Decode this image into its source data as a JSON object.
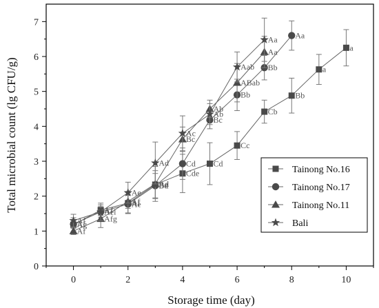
{
  "chart_data": {
    "type": "line",
    "xlabel": "Storage time (day)",
    "ylabel": "Total microbial count (lg CFU/g)",
    "xlim": [
      -1,
      11
    ],
    "ylim": [
      0,
      7.5
    ],
    "x_ticks": [
      0,
      2,
      4,
      6,
      8,
      10
    ],
    "y_ticks": [
      0,
      1,
      2,
      3,
      4,
      5,
      6,
      7
    ],
    "legend_position": "bottom-right",
    "line_color": "#666666",
    "series": [
      {
        "name": "Tainong No.16",
        "marker": "square",
        "points": [
          {
            "x": 0,
            "y": 1.18,
            "err": 0.2,
            "label": "Ag"
          },
          {
            "x": 1,
            "y": 1.6,
            "err": 0.15,
            "label": "Af"
          },
          {
            "x": 2,
            "y": 1.8,
            "err": 0.3,
            "label": "Af"
          },
          {
            "x": 3,
            "y": 2.33,
            "err": 0.4,
            "label": "Be"
          },
          {
            "x": 4,
            "y": 2.65,
            "err": 0.55,
            "label": "Cde"
          },
          {
            "x": 5,
            "y": 2.93,
            "err": 0.6,
            "label": "Cd"
          },
          {
            "x": 6,
            "y": 3.45,
            "err": 0.4,
            "label": "Cc"
          },
          {
            "x": 7,
            "y": 4.42,
            "err": 0.33,
            "label": "Cb"
          },
          {
            "x": 8,
            "y": 4.88,
            "err": 0.5,
            "label": "Bb"
          },
          {
            "x": 9,
            "y": 5.63,
            "err": 0.43,
            "label": "a"
          },
          {
            "x": 10,
            "y": 6.25,
            "err": 0.52,
            "label": "a"
          }
        ]
      },
      {
        "name": "Tainong No.17",
        "marker": "circle",
        "points": [
          {
            "x": 0,
            "y": 1.2,
            "err": 0.12,
            "label": "Af"
          },
          {
            "x": 1,
            "y": 1.55,
            "err": 0.15,
            "label": "Af"
          },
          {
            "x": 2,
            "y": 1.77,
            "err": 0.25,
            "label": "Ae"
          },
          {
            "x": 3,
            "y": 2.3,
            "err": 0.35,
            "label": "Bd"
          },
          {
            "x": 4,
            "y": 2.93,
            "err": 0.45,
            "label": "Cd"
          },
          {
            "x": 5,
            "y": 4.18,
            "err": 0.25,
            "label": "Bc"
          },
          {
            "x": 6,
            "y": 4.9,
            "err": 0.45,
            "label": "Bb"
          },
          {
            "x": 7,
            "y": 5.68,
            "err": 0.35,
            "label": "Bb"
          },
          {
            "x": 8,
            "y": 6.6,
            "err": 0.42,
            "label": "Aa"
          }
        ]
      },
      {
        "name": "Tainong No.11",
        "marker": "triangle",
        "points": [
          {
            "x": 0,
            "y": 1.0,
            "err": 0.1,
            "label": "Af"
          },
          {
            "x": 1,
            "y": 1.35,
            "err": 0.25,
            "label": "Afg"
          },
          {
            "x": 2,
            "y": 1.85,
            "err": 0.2,
            "label": "Af"
          },
          {
            "x": 3,
            "y": 2.35,
            "err": 0.5,
            "label": "Ad"
          },
          {
            "x": 4,
            "y": 3.63,
            "err": 0.35,
            "label": "Bc"
          },
          {
            "x": 5,
            "y": 4.5,
            "err": 0.25,
            "label": "Ab"
          },
          {
            "x": 6,
            "y": 5.25,
            "err": 0.55,
            "label": "ABab"
          },
          {
            "x": 7,
            "y": 6.13,
            "err": 0.45,
            "label": "Aa"
          }
        ]
      },
      {
        "name": "Bali",
        "marker": "star",
        "points": [
          {
            "x": 0,
            "y": 1.3,
            "err": 0.18,
            "label": "Af"
          },
          {
            "x": 1,
            "y": 1.55,
            "err": 0.25,
            "label": "Ael"
          },
          {
            "x": 2,
            "y": 2.1,
            "err": 0.3,
            "label": "Ae"
          },
          {
            "x": 3,
            "y": 2.95,
            "err": 0.6,
            "label": "Ad"
          },
          {
            "x": 4,
            "y": 3.8,
            "err": 0.5,
            "label": "Ac"
          },
          {
            "x": 5,
            "y": 4.35,
            "err": 0.3,
            "label": "Ab"
          },
          {
            "x": 6,
            "y": 5.7,
            "err": 0.43,
            "label": "Aab"
          },
          {
            "x": 7,
            "y": 6.48,
            "err": 0.62,
            "label": "Aa"
          }
        ]
      }
    ]
  }
}
